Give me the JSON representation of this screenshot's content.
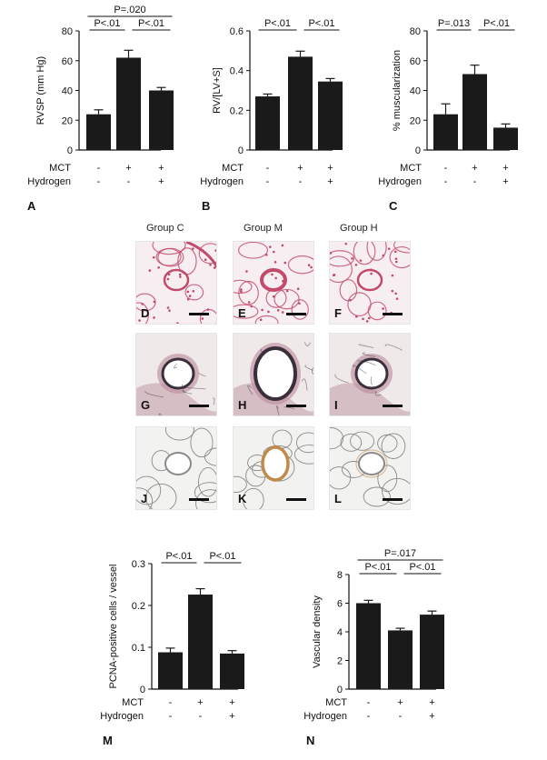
{
  "chart_data": [
    {
      "id": "A",
      "type": "bar",
      "panel_label": "A",
      "ylabel": "RVSP (mm Hg)",
      "ylim": [
        0,
        80
      ],
      "yticks": [
        "0",
        "20",
        "40",
        "60",
        "80"
      ],
      "ytick_values": [
        0,
        20,
        40,
        60,
        80
      ],
      "values": [
        24,
        62,
        40
      ],
      "errors": [
        3,
        5,
        2
      ],
      "row_labels": [
        "MCT",
        "Hydrogen"
      ],
      "row_values": [
        [
          "-",
          "+",
          "+"
        ],
        [
          "-",
          "-",
          "+"
        ]
      ],
      "significance": [
        {
          "from": 0,
          "to": 1,
          "label": "P<.01",
          "level": 1
        },
        {
          "from": 1,
          "to": 2,
          "label": "P<.01",
          "level": 1
        },
        {
          "from": 0,
          "to": 2,
          "label": "P=.020",
          "level": 2
        }
      ]
    },
    {
      "id": "B",
      "type": "bar",
      "panel_label": "B",
      "ylabel": "RV/[LV+S]",
      "ylim": [
        0,
        0.6
      ],
      "yticks": [
        "0",
        "0.2",
        "0.4",
        "0.6"
      ],
      "ytick_values": [
        0,
        0.2,
        0.4,
        0.6
      ],
      "values": [
        0.27,
        0.47,
        0.345
      ],
      "errors": [
        0.012,
        0.028,
        0.015
      ],
      "row_labels": [
        "MCT",
        "Hydrogen"
      ],
      "row_values": [
        [
          "-",
          "+",
          "+"
        ],
        [
          "-",
          "-",
          "+"
        ]
      ],
      "significance": [
        {
          "from": 0,
          "to": 1,
          "label": "P<.01",
          "level": 1
        },
        {
          "from": 1,
          "to": 2,
          "label": "P<.01",
          "level": 1
        }
      ]
    },
    {
      "id": "C",
      "type": "bar",
      "panel_label": "C",
      "ylabel": "% muscularization",
      "ylim": [
        0,
        80
      ],
      "yticks": [
        "0",
        "20",
        "40",
        "60",
        "80"
      ],
      "ytick_values": [
        0,
        20,
        40,
        60,
        80
      ],
      "values": [
        24,
        51,
        15
      ],
      "errors": [
        7,
        6,
        2.5
      ],
      "row_labels": [
        "MCT",
        "Hydrogen"
      ],
      "row_values": [
        [
          "-",
          "+",
          "+"
        ],
        [
          "-",
          "-",
          "+"
        ]
      ],
      "significance": [
        {
          "from": 0,
          "to": 1,
          "label": "P=.013",
          "level": 1
        },
        {
          "from": 1,
          "to": 2,
          "label": "P<.01",
          "level": 1
        }
      ]
    },
    {
      "id": "M",
      "type": "bar",
      "panel_label": "M",
      "ylabel": "PCNA-positive cells / vessel",
      "ylim": [
        0,
        0.3
      ],
      "yticks": [
        "0",
        "0.1",
        "0.2",
        "0.3"
      ],
      "ytick_values": [
        0,
        0.1,
        0.2,
        0.3
      ],
      "values": [
        0.088,
        0.226,
        0.085
      ],
      "errors": [
        0.01,
        0.014,
        0.007
      ],
      "row_labels": [
        "MCT",
        "Hydrogen"
      ],
      "row_values": [
        [
          "-",
          "+",
          "+"
        ],
        [
          "-",
          "-",
          "+"
        ]
      ],
      "significance": [
        {
          "from": 0,
          "to": 1,
          "label": "P<.01",
          "level": 1
        },
        {
          "from": 1,
          "to": 2,
          "label": "P<.01",
          "level": 1
        }
      ]
    },
    {
      "id": "N",
      "type": "bar",
      "panel_label": "N",
      "ylabel": "Vascular density",
      "ylim": [
        0,
        8
      ],
      "yticks": [
        "0",
        "2",
        "4",
        "6",
        "8"
      ],
      "ytick_values": [
        0,
        2,
        4,
        6,
        8
      ],
      "values": [
        6.0,
        4.1,
        5.2
      ],
      "errors": [
        0.2,
        0.15,
        0.25
      ],
      "row_labels": [
        "MCT",
        "Hydrogen"
      ],
      "row_values": [
        [
          "-",
          "+",
          "+"
        ],
        [
          "-",
          "-",
          "+"
        ]
      ],
      "significance": [
        {
          "from": 0,
          "to": 1,
          "label": "P<.01",
          "level": 1
        },
        {
          "from": 1,
          "to": 2,
          "label": "P<.01",
          "level": 1
        },
        {
          "from": 0,
          "to": 2,
          "label": "P=.017",
          "level": 2
        }
      ]
    }
  ],
  "micrographs": {
    "group_titles": [
      "Group C",
      "Group M",
      "Group H"
    ],
    "panels": [
      {
        "label": "D",
        "stain": "he"
      },
      {
        "label": "E",
        "stain": "he"
      },
      {
        "label": "F",
        "stain": "he"
      },
      {
        "label": "G",
        "stain": "elastic"
      },
      {
        "label": "H",
        "stain": "elastic"
      },
      {
        "label": "I",
        "stain": "elastic"
      },
      {
        "label": "J",
        "stain": "ihc"
      },
      {
        "label": "K",
        "stain": "ihc"
      },
      {
        "label": "L",
        "stain": "ihc"
      }
    ],
    "colors": {
      "he_cell": "#c24a6a",
      "he_bg": "#f7eef1",
      "elastic_ring": "#3a2f3a",
      "elastic_tissue": "#b98a9a",
      "elastic_bg": "#efe9ea",
      "ihc_wall": "#c08a4a",
      "ihc_line": "#8a8a8a",
      "ihc_bg": "#f2f2f0"
    }
  },
  "colors": {
    "bar": "#1a1a1a",
    "axis": "#111111"
  }
}
